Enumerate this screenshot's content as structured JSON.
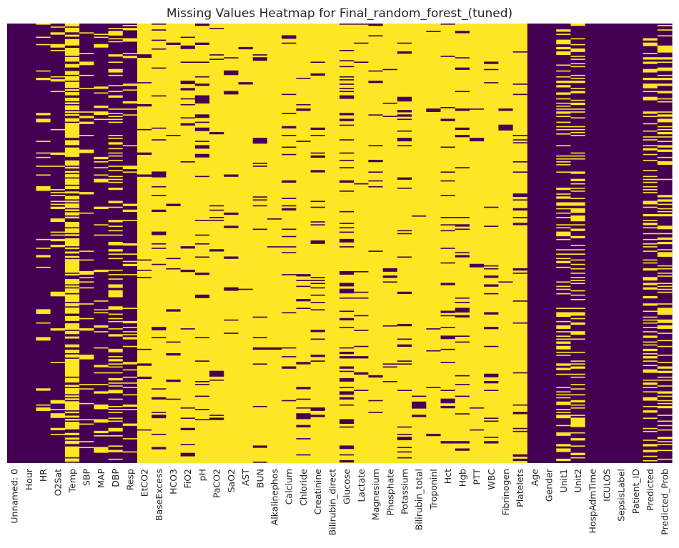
{
  "chart_data": {
    "type": "heatmap",
    "title": "Missing Values Heatmap for Final_random_forest_(tuned)",
    "xlabel": "",
    "ylabel": "",
    "colorbar": false,
    "colormap": "viridis",
    "colors": {
      "present": "#440154",
      "missing": "#fde725",
      "background": "#ffffff",
      "text": "#262626"
    },
    "columns": [
      {
        "label": "Unnamed: 0",
        "missing_fraction": 0.0
      },
      {
        "label": "Hour",
        "missing_fraction": 0.0
      },
      {
        "label": "HR",
        "missing_fraction": 0.08
      },
      {
        "label": "O2Sat",
        "missing_fraction": 0.11
      },
      {
        "label": "Temp",
        "missing_fraction": 0.66
      },
      {
        "label": "SBP",
        "missing_fraction": 0.12
      },
      {
        "label": "MAP",
        "missing_fraction": 0.1
      },
      {
        "label": "DBP",
        "missing_fraction": 0.32
      },
      {
        "label": "Resp",
        "missing_fraction": 0.11
      },
      {
        "label": "EtCO2",
        "missing_fraction": 0.96
      },
      {
        "label": "BaseExcess",
        "missing_fraction": 0.95
      },
      {
        "label": "HCO3",
        "missing_fraction": 0.96
      },
      {
        "label": "FiO2",
        "missing_fraction": 0.92
      },
      {
        "label": "pH",
        "missing_fraction": 0.93
      },
      {
        "label": "PaCO2",
        "missing_fraction": 0.94
      },
      {
        "label": "SaO2",
        "missing_fraction": 0.97
      },
      {
        "label": "AST",
        "missing_fraction": 0.98
      },
      {
        "label": "BUN",
        "missing_fraction": 0.93
      },
      {
        "label": "Alkalinephos",
        "missing_fraction": 0.98
      },
      {
        "label": "Calcium",
        "missing_fraction": 0.94
      },
      {
        "label": "Chloride",
        "missing_fraction": 0.95
      },
      {
        "label": "Creatinine",
        "missing_fraction": 0.94
      },
      {
        "label": "Bilirubin_direct",
        "missing_fraction": 0.998
      },
      {
        "label": "Glucose",
        "missing_fraction": 0.83
      },
      {
        "label": "Lactate",
        "missing_fraction": 0.97
      },
      {
        "label": "Magnesium",
        "missing_fraction": 0.94
      },
      {
        "label": "Phosphate",
        "missing_fraction": 0.96
      },
      {
        "label": "Potassium",
        "missing_fraction": 0.91
      },
      {
        "label": "Bilirubin_total",
        "missing_fraction": 0.98
      },
      {
        "label": "TroponinI",
        "missing_fraction": 0.99
      },
      {
        "label": "Hct",
        "missing_fraction": 0.91
      },
      {
        "label": "Hgb",
        "missing_fraction": 0.93
      },
      {
        "label": "PTT",
        "missing_fraction": 0.97
      },
      {
        "label": "WBC",
        "missing_fraction": 0.94
      },
      {
        "label": "Fibrinogen",
        "missing_fraction": 0.99
      },
      {
        "label": "Platelets",
        "missing_fraction": 0.94
      },
      {
        "label": "Age",
        "missing_fraction": 0.0
      },
      {
        "label": "Gender",
        "missing_fraction": 0.0
      },
      {
        "label": "Unit1",
        "missing_fraction": 0.39
      },
      {
        "label": "Unit2",
        "missing_fraction": 0.39
      },
      {
        "label": "HospAdmTime",
        "missing_fraction": 0.0
      },
      {
        "label": "ICULOS",
        "missing_fraction": 0.0
      },
      {
        "label": "SepsisLabel",
        "missing_fraction": 0.0
      },
      {
        "label": "Patient_ID",
        "missing_fraction": 0.0
      },
      {
        "label": "Predicted",
        "missing_fraction": 0.38
      },
      {
        "label": "Predicted_Prob",
        "missing_fraction": 0.38
      }
    ]
  }
}
